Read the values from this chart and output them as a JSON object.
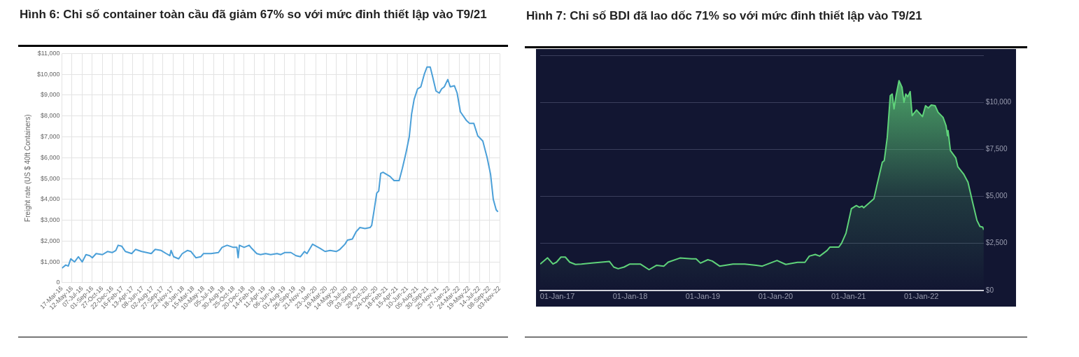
{
  "chart_data": [
    {
      "type": "line",
      "title": "Hình 6: Chỉ số container toàn cầu đã giảm 67% so với mức đỉnh thiết lập vào T9/21",
      "ylabel": "Freight rate (US $ 40ft Containers)",
      "grid": true,
      "xlim": [
        "2016-03-17",
        "2022-11-03"
      ],
      "xticks": [
        {
          "value": "2016-03-17",
          "label": "17-Mar-16"
        },
        {
          "value": "2016-05-12",
          "label": "12-May-16"
        },
        {
          "value": "2016-07-07",
          "label": "07-Jul-16"
        },
        {
          "value": "2016-09-01",
          "label": "01-Sep-16"
        },
        {
          "value": "2016-10-27",
          "label": "27-Oct-16"
        },
        {
          "value": "2016-12-22",
          "label": "22-Dec-16"
        },
        {
          "value": "2017-02-16",
          "label": "16-Feb-17"
        },
        {
          "value": "2017-04-13",
          "label": "13-Apr-17"
        },
        {
          "value": "2017-06-08",
          "label": "08-Jun-17"
        },
        {
          "value": "2017-08-02",
          "label": "02-Aug-17"
        },
        {
          "value": "2017-09-27",
          "label": "27-Sep-17"
        },
        {
          "value": "2017-11-22",
          "label": "22-Nov-17"
        },
        {
          "value": "2018-01-18",
          "label": "18-Jan-18"
        },
        {
          "value": "2018-03-15",
          "label": "15-Mar-18"
        },
        {
          "value": "2018-05-10",
          "label": "10-May-18"
        },
        {
          "value": "2018-07-05",
          "label": "05-Jul-18"
        },
        {
          "value": "2018-08-30",
          "label": "30-Aug-18"
        },
        {
          "value": "2018-10-25",
          "label": "25-Oct-18"
        },
        {
          "value": "2018-12-20",
          "label": "20-Dec-18"
        },
        {
          "value": "2019-02-14",
          "label": "14-Feb-19"
        },
        {
          "value": "2019-04-11",
          "label": "11-Apr-19"
        },
        {
          "value": "2019-06-06",
          "label": "06-Jun-19"
        },
        {
          "value": "2019-08-01",
          "label": "01-Aug-19"
        },
        {
          "value": "2019-09-26",
          "label": "26-Sep-19"
        },
        {
          "value": "2019-11-21",
          "label": "21-Nov-19"
        },
        {
          "value": "2020-01-23",
          "label": "23-Jan-20"
        },
        {
          "value": "2020-03-19",
          "label": "19-Mar-20"
        },
        {
          "value": "2020-05-14",
          "label": "14-May-20"
        },
        {
          "value": "2020-07-09",
          "label": "09-Jul-20"
        },
        {
          "value": "2020-09-03",
          "label": "03-Sep-20"
        },
        {
          "value": "2020-10-29",
          "label": "29-Oct-20"
        },
        {
          "value": "2020-12-24",
          "label": "24-Dec-20"
        },
        {
          "value": "2021-02-18",
          "label": "18-Feb-21"
        },
        {
          "value": "2021-04-15",
          "label": "15-Apr-21"
        },
        {
          "value": "2021-06-10",
          "label": "10-Jun-21"
        },
        {
          "value": "2021-08-05",
          "label": "05-Aug-21"
        },
        {
          "value": "2021-09-30",
          "label": "30-Sep-21"
        },
        {
          "value": "2021-11-25",
          "label": "25-Nov-21"
        },
        {
          "value": "2022-01-27",
          "label": "27-Jan-22"
        },
        {
          "value": "2022-03-24",
          "label": "24-Mar-22"
        },
        {
          "value": "2022-05-19",
          "label": "19-May-22"
        },
        {
          "value": "2022-07-14",
          "label": "14-Jul-22"
        },
        {
          "value": "2022-09-08",
          "label": "08-Sep-22"
        },
        {
          "value": "2022-11-03",
          "label": "03-Nov-22"
        }
      ],
      "ylim": [
        0,
        11000
      ],
      "yticks": [
        {
          "value": 0,
          "label": "0"
        },
        {
          "value": 1000,
          "label": "$1,000"
        },
        {
          "value": 2000,
          "label": "$2,000"
        },
        {
          "value": 3000,
          "label": "$3,000"
        },
        {
          "value": 4000,
          "label": "$4,000"
        },
        {
          "value": 5000,
          "label": "$5,000"
        },
        {
          "value": 6000,
          "label": "$6,000"
        },
        {
          "value": 7000,
          "label": "$7,000"
        },
        {
          "value": 8000,
          "label": "$8,000"
        },
        {
          "value": 9000,
          "label": "$9,000"
        },
        {
          "value": 10000,
          "label": "$10,000"
        },
        {
          "value": 11000,
          "label": "$11,000"
        }
      ],
      "series": [
        {
          "color": "#4a9fd8",
          "x": [
            "2016-03-17",
            "2016-04-07",
            "2016-04-21",
            "2016-05-05",
            "2016-05-26",
            "2016-06-16",
            "2016-07-07",
            "2016-07-28",
            "2016-08-18",
            "2016-09-01",
            "2016-09-22",
            "2016-10-27",
            "2016-11-24",
            "2016-12-20",
            "2017-01-09",
            "2017-01-22",
            "2017-02-11",
            "2017-03-03",
            "2017-04-07",
            "2017-04-28",
            "2017-06-01",
            "2017-06-28",
            "2017-07-24",
            "2017-08-15",
            "2017-09-17",
            "2017-10-15",
            "2017-11-04",
            "2017-11-11",
            "2017-11-25",
            "2017-12-23",
            "2018-01-12",
            "2018-02-09",
            "2018-03-01",
            "2018-03-28",
            "2018-04-25",
            "2018-05-09",
            "2018-06-20",
            "2018-07-31",
            "2018-08-20",
            "2018-09-17",
            "2018-10-21",
            "2018-11-10",
            "2018-11-17",
            "2018-11-24",
            "2018-12-20",
            "2019-01-17",
            "2019-01-31",
            "2019-02-28",
            "2019-03-21",
            "2019-04-18",
            "2019-05-16",
            "2019-06-20",
            "2019-07-11",
            "2019-08-01",
            "2019-09-05",
            "2019-10-03",
            "2019-10-28",
            "2019-11-19",
            "2019-12-03",
            "2020-01-03",
            "2020-02-14",
            "2020-03-12",
            "2020-04-09",
            "2020-05-13",
            "2020-06-02",
            "2020-06-30",
            "2020-07-14",
            "2020-08-10",
            "2020-08-31",
            "2020-09-21",
            "2020-10-19",
            "2020-11-16",
            "2020-11-25",
            "2020-12-08",
            "2020-12-23",
            "2021-01-03",
            "2021-01-14",
            "2021-01-27",
            "2021-03-07",
            "2021-03-29",
            "2021-04-26",
            "2021-05-14",
            "2021-06-02",
            "2021-06-21",
            "2021-07-04",
            "2021-07-18",
            "2021-08-06",
            "2021-08-24",
            "2021-09-12",
            "2021-09-27",
            "2021-10-15",
            "2021-10-28",
            "2021-11-16",
            "2021-12-04",
            "2021-12-17",
            "2022-01-01",
            "2022-01-20",
            "2022-02-03",
            "2022-02-26",
            "2022-03-13",
            "2022-03-31",
            "2022-05-02",
            "2022-05-20",
            "2022-06-13",
            "2022-07-05",
            "2022-08-02",
            "2022-08-26",
            "2022-09-14",
            "2022-09-29",
            "2022-10-15",
            "2022-10-25"
          ],
          "values": [
            700,
            850,
            800,
            1150,
            1000,
            1250,
            1000,
            1350,
            1300,
            1200,
            1400,
            1350,
            1500,
            1450,
            1550,
            1800,
            1750,
            1500,
            1400,
            1600,
            1500,
            1450,
            1400,
            1600,
            1550,
            1400,
            1300,
            1550,
            1250,
            1150,
            1400,
            1550,
            1500,
            1200,
            1250,
            1400,
            1400,
            1450,
            1700,
            1800,
            1700,
            1700,
            1200,
            1800,
            1700,
            1800,
            1650,
            1400,
            1350,
            1400,
            1350,
            1400,
            1350,
            1450,
            1450,
            1300,
            1250,
            1500,
            1400,
            1850,
            1650,
            1500,
            1550,
            1500,
            1600,
            1850,
            2050,
            2100,
            2450,
            2650,
            2600,
            2650,
            2750,
            3450,
            4300,
            4400,
            5250,
            5300,
            5100,
            4900,
            4900,
            5500,
            6200,
            7000,
            8100,
            8800,
            9300,
            9400,
            10000,
            10350,
            10350,
            9900,
            9200,
            9100,
            9300,
            9400,
            9750,
            9400,
            9450,
            9100,
            8200,
            7800,
            7650,
            7650,
            7050,
            6800,
            6000,
            5200,
            4000,
            3500,
            3400
          ]
        }
      ]
    },
    {
      "type": "area",
      "title": "Hình 7: Chỉ số BDI đã lao dốc 71% so với mức đỉnh thiết lập vào T9/21",
      "grid": "y",
      "xlim": [
        "2016-10-07",
        "2022-11-10"
      ],
      "xticks": [
        {
          "value": "2017-01-01",
          "label": "01-Jan-17"
        },
        {
          "value": "2018-01-01",
          "label": "01-Jan-18"
        },
        {
          "value": "2019-01-01",
          "label": "01-Jan-19"
        },
        {
          "value": "2020-01-01",
          "label": "01-Jan-20"
        },
        {
          "value": "2021-01-01",
          "label": "01-Jan-21"
        },
        {
          "value": "2022-01-01",
          "label": "01-Jan-22"
        }
      ],
      "ylim": [
        0,
        12500
      ],
      "yticks": [
        {
          "value": 0,
          "label": "$0"
        },
        {
          "value": 2500,
          "label": "$2,500"
        },
        {
          "value": 5000,
          "label": "$5,000"
        },
        {
          "value": 7500,
          "label": "$7,500"
        },
        {
          "value": 10000,
          "label": "$10,000"
        },
        {
          "value": 12500,
          "label": null
        }
      ],
      "series": [
        {
          "color": "#5fd37a",
          "x": [
            "2016-10-07",
            "2016-11-13",
            "2016-12-10",
            "2016-12-28",
            "2017-01-19",
            "2017-02-10",
            "2017-03-04",
            "2017-04-02",
            "2017-05-02",
            "2017-06-23",
            "2017-09-19",
            "2017-10-11",
            "2017-11-02",
            "2017-12-02",
            "2017-12-31",
            "2018-02-21",
            "2018-04-06",
            "2018-05-13",
            "2018-06-19",
            "2018-07-11",
            "2018-09-08",
            "2018-11-06",
            "2018-11-28",
            "2018-12-20",
            "2019-01-26",
            "2019-02-17",
            "2019-03-26",
            "2019-06-01",
            "2019-07-30",
            "2019-09-26",
            "2019-10-26",
            "2020-01-08",
            "2020-02-21",
            "2020-04-20",
            "2020-05-27",
            "2020-06-18",
            "2020-07-18",
            "2020-08-09",
            "2020-09-15",
            "2020-09-29",
            "2020-11-13",
            "2020-11-27",
            "2020-12-19",
            "2021-01-15",
            "2021-02-09",
            "2021-02-24",
            "2021-03-10",
            "2021-03-18",
            "2021-04-24",
            "2021-05-08",
            "2021-05-23",
            "2021-06-19",
            "2021-06-29",
            "2021-07-14",
            "2021-07-29",
            "2021-08-08",
            "2021-08-17",
            "2021-08-27",
            "2021-09-11",
            "2021-09-26",
            "2021-10-06",
            "2021-10-15",
            "2021-10-25",
            "2021-11-06",
            "2021-11-16",
            "2021-12-08",
            "2022-01-07",
            "2022-01-22",
            "2022-02-05",
            "2022-02-20",
            "2022-03-11",
            "2022-03-26",
            "2022-04-20",
            "2022-05-05",
            "2022-05-12",
            "2022-05-15",
            "2022-05-27",
            "2022-06-23",
            "2022-07-03",
            "2022-08-01",
            "2022-08-23",
            "2022-09-15",
            "2022-10-07",
            "2022-10-22",
            "2022-11-05",
            "2022-11-10"
          ],
          "values": [
            1400,
            1730,
            1400,
            1500,
            1770,
            1770,
            1500,
            1380,
            1400,
            1450,
            1540,
            1240,
            1150,
            1240,
            1400,
            1400,
            1100,
            1330,
            1290,
            1500,
            1720,
            1680,
            1680,
            1450,
            1630,
            1560,
            1290,
            1400,
            1400,
            1330,
            1290,
            1590,
            1380,
            1490,
            1490,
            1820,
            1910,
            1820,
            2120,
            2300,
            2300,
            2510,
            3040,
            4340,
            4510,
            4420,
            4480,
            4390,
            4740,
            4870,
            5580,
            6810,
            6900,
            8140,
            10350,
            10440,
            9650,
            10350,
            11150,
            10800,
            10000,
            10440,
            10300,
            10570,
            9290,
            9590,
            9240,
            9820,
            9700,
            9860,
            9820,
            9470,
            9200,
            8760,
            8230,
            8500,
            7430,
            7040,
            6580,
            6190,
            5750,
            4690,
            3720,
            3400,
            3360,
            3220
          ]
        }
      ]
    }
  ]
}
